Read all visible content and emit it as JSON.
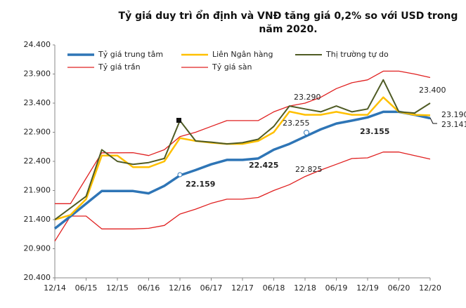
{
  "chart_data": {
    "type": "line",
    "title": "Tỷ giá duy trì ổn định và VNĐ tăng giá 0,2% so với USD trong năm 2020.",
    "categories": [
      "12/14",
      null,
      "06/15",
      null,
      "12/15",
      null,
      "06/16",
      null,
      "12/16",
      null,
      "06/17",
      null,
      "12/17",
      null,
      "06/18",
      null,
      "12/18",
      null,
      "06/19",
      null,
      "12/19",
      null,
      "06/20",
      null,
      "12/20"
    ],
    "series": [
      {
        "name": "Tỷ giá trung tâm",
        "color": "#2e75b6",
        "width": 3.5,
        "values": [
          21246,
          21458,
          21673,
          21890,
          21890,
          21890,
          21850,
          21980,
          22159,
          22250,
          22350,
          22425,
          22425,
          22450,
          22600,
          22700,
          22825,
          22950,
          23050,
          23100,
          23155,
          23250,
          23250,
          23200,
          23141
        ]
      },
      {
        "name": "Liên Ngân hàng",
        "color": "#ffc000",
        "width": 2.5,
        "values": [
          21400,
          21480,
          21750,
          22500,
          22500,
          22300,
          22300,
          22400,
          22800,
          22750,
          22720,
          22700,
          22700,
          22750,
          22900,
          23255,
          23200,
          23200,
          23250,
          23200,
          23200,
          23500,
          23250,
          23200,
          23190
        ]
      },
      {
        "name": "Thị trường tự do",
        "color": "#4f5b24",
        "width": 2,
        "values": [
          21400,
          21600,
          21800,
          22600,
          22400,
          22350,
          22380,
          22450,
          23100,
          22750,
          22730,
          22700,
          22720,
          22780,
          23000,
          23350,
          23300,
          23250,
          23350,
          23250,
          23300,
          23800,
          23250,
          23230,
          23400
        ]
      },
      {
        "name": "Tỷ giá trần",
        "color": "#e02020",
        "width": 1.3,
        "values": [
          21673,
          21673,
          22110,
          22547,
          22547,
          22550,
          22500,
          22600,
          22824,
          22900,
          23000,
          23100,
          23100,
          23100,
          23250,
          23350,
          23400,
          23500,
          23650,
          23750,
          23800,
          23950,
          23950,
          23900,
          23840
        ]
      },
      {
        "name": "Tỷ giá sàn",
        "color": "#e02020",
        "width": 1.3,
        "values": [
          21030,
          21460,
          21460,
          21240,
          21240,
          21240,
          21250,
          21300,
          21495,
          21580,
          21680,
          21750,
          21750,
          21780,
          21900,
          22000,
          22140,
          22250,
          22350,
          22450,
          22460,
          22560,
          22560,
          22500,
          22440
        ]
      }
    ],
    "ylim": [
      20400,
      24400
    ],
    "yticks": [
      {
        "value": 20400,
        "label": "20.400"
      },
      {
        "value": 20900,
        "label": "20.900"
      },
      {
        "value": 21400,
        "label": "21.400"
      },
      {
        "value": 21900,
        "label": "21.900"
      },
      {
        "value": 22400,
        "label": "22.400"
      },
      {
        "value": 22900,
        "label": "22.900"
      },
      {
        "value": 23400,
        "label": "23.400"
      },
      {
        "value": 23900,
        "label": "23.900"
      },
      {
        "value": 24400,
        "label": "24.400"
      }
    ],
    "annotations": [
      {
        "text": "22.159",
        "color": "#2e75b6"
      },
      {
        "text": "22.425",
        "color": "#2e75b6"
      },
      {
        "text": "22.825",
        "color": "#333333"
      },
      {
        "text": "23.155",
        "color": "#2e75b6"
      },
      {
        "text": "23.141",
        "color": "#2e75b6"
      },
      {
        "text": "23.255",
        "color": "#ffc000"
      },
      {
        "text": "23.290",
        "color": "#4f5b24"
      },
      {
        "text": "23.190",
        "color": "#e0a800"
      },
      {
        "text": "23.400",
        "color": "#5a8f1e"
      }
    ],
    "legend": "top-left",
    "grid": false
  }
}
